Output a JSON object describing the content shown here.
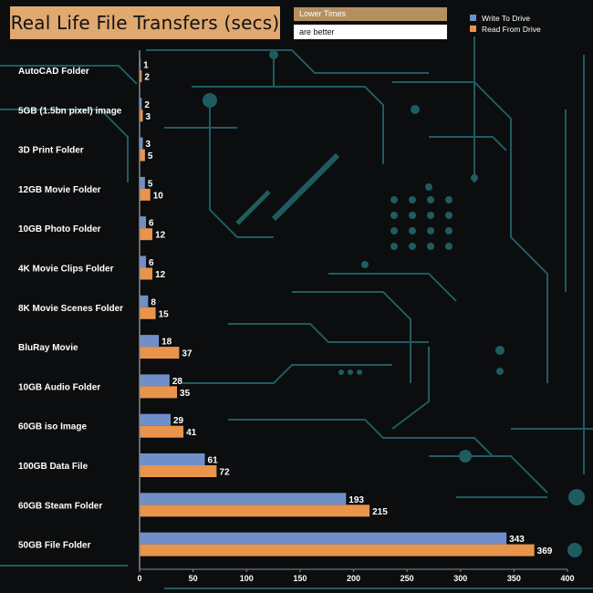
{
  "title": "Real Life File Transfers (secs)",
  "note": {
    "line1": "Lower Times",
    "line2": "are better"
  },
  "colors": {
    "background": "#0b0d0f",
    "circuit": "#1f5c60",
    "write": "#6f8fca",
    "read": "#e9944b",
    "title_bg": "#e0a96f"
  },
  "chart_data": {
    "type": "bar",
    "orientation": "horizontal",
    "title": "Real Life File Transfers (secs)",
    "categories": [
      "AutoCAD Folder",
      "5GB (1.5bn pixel) image",
      "3D Print Folder",
      "12GB Movie Folder",
      "10GB Photo Folder",
      "4K Movie Clips Folder",
      "8K Movie Scenes Folder",
      "BluRay Movie",
      "10GB Audio Folder",
      "60GB iso Image",
      "100GB Data File",
      "60GB Steam Folder",
      "50GB File Folder"
    ],
    "series": [
      {
        "name": "Write To  Drive",
        "color": "#6f8fca",
        "values": [
          1,
          2,
          3,
          5,
          6,
          6,
          8,
          18,
          28,
          29,
          61,
          193,
          343
        ]
      },
      {
        "name": "Read From  Drive",
        "color": "#e9944b",
        "values": [
          2,
          3,
          5,
          10,
          12,
          12,
          15,
          37,
          35,
          41,
          72,
          215,
          369
        ]
      }
    ],
    "xlim": [
      0,
      400
    ],
    "xticks": [
      0,
      50,
      100,
      150,
      200,
      250,
      300,
      350,
      400
    ],
    "legend": "top-right",
    "grid": false
  }
}
